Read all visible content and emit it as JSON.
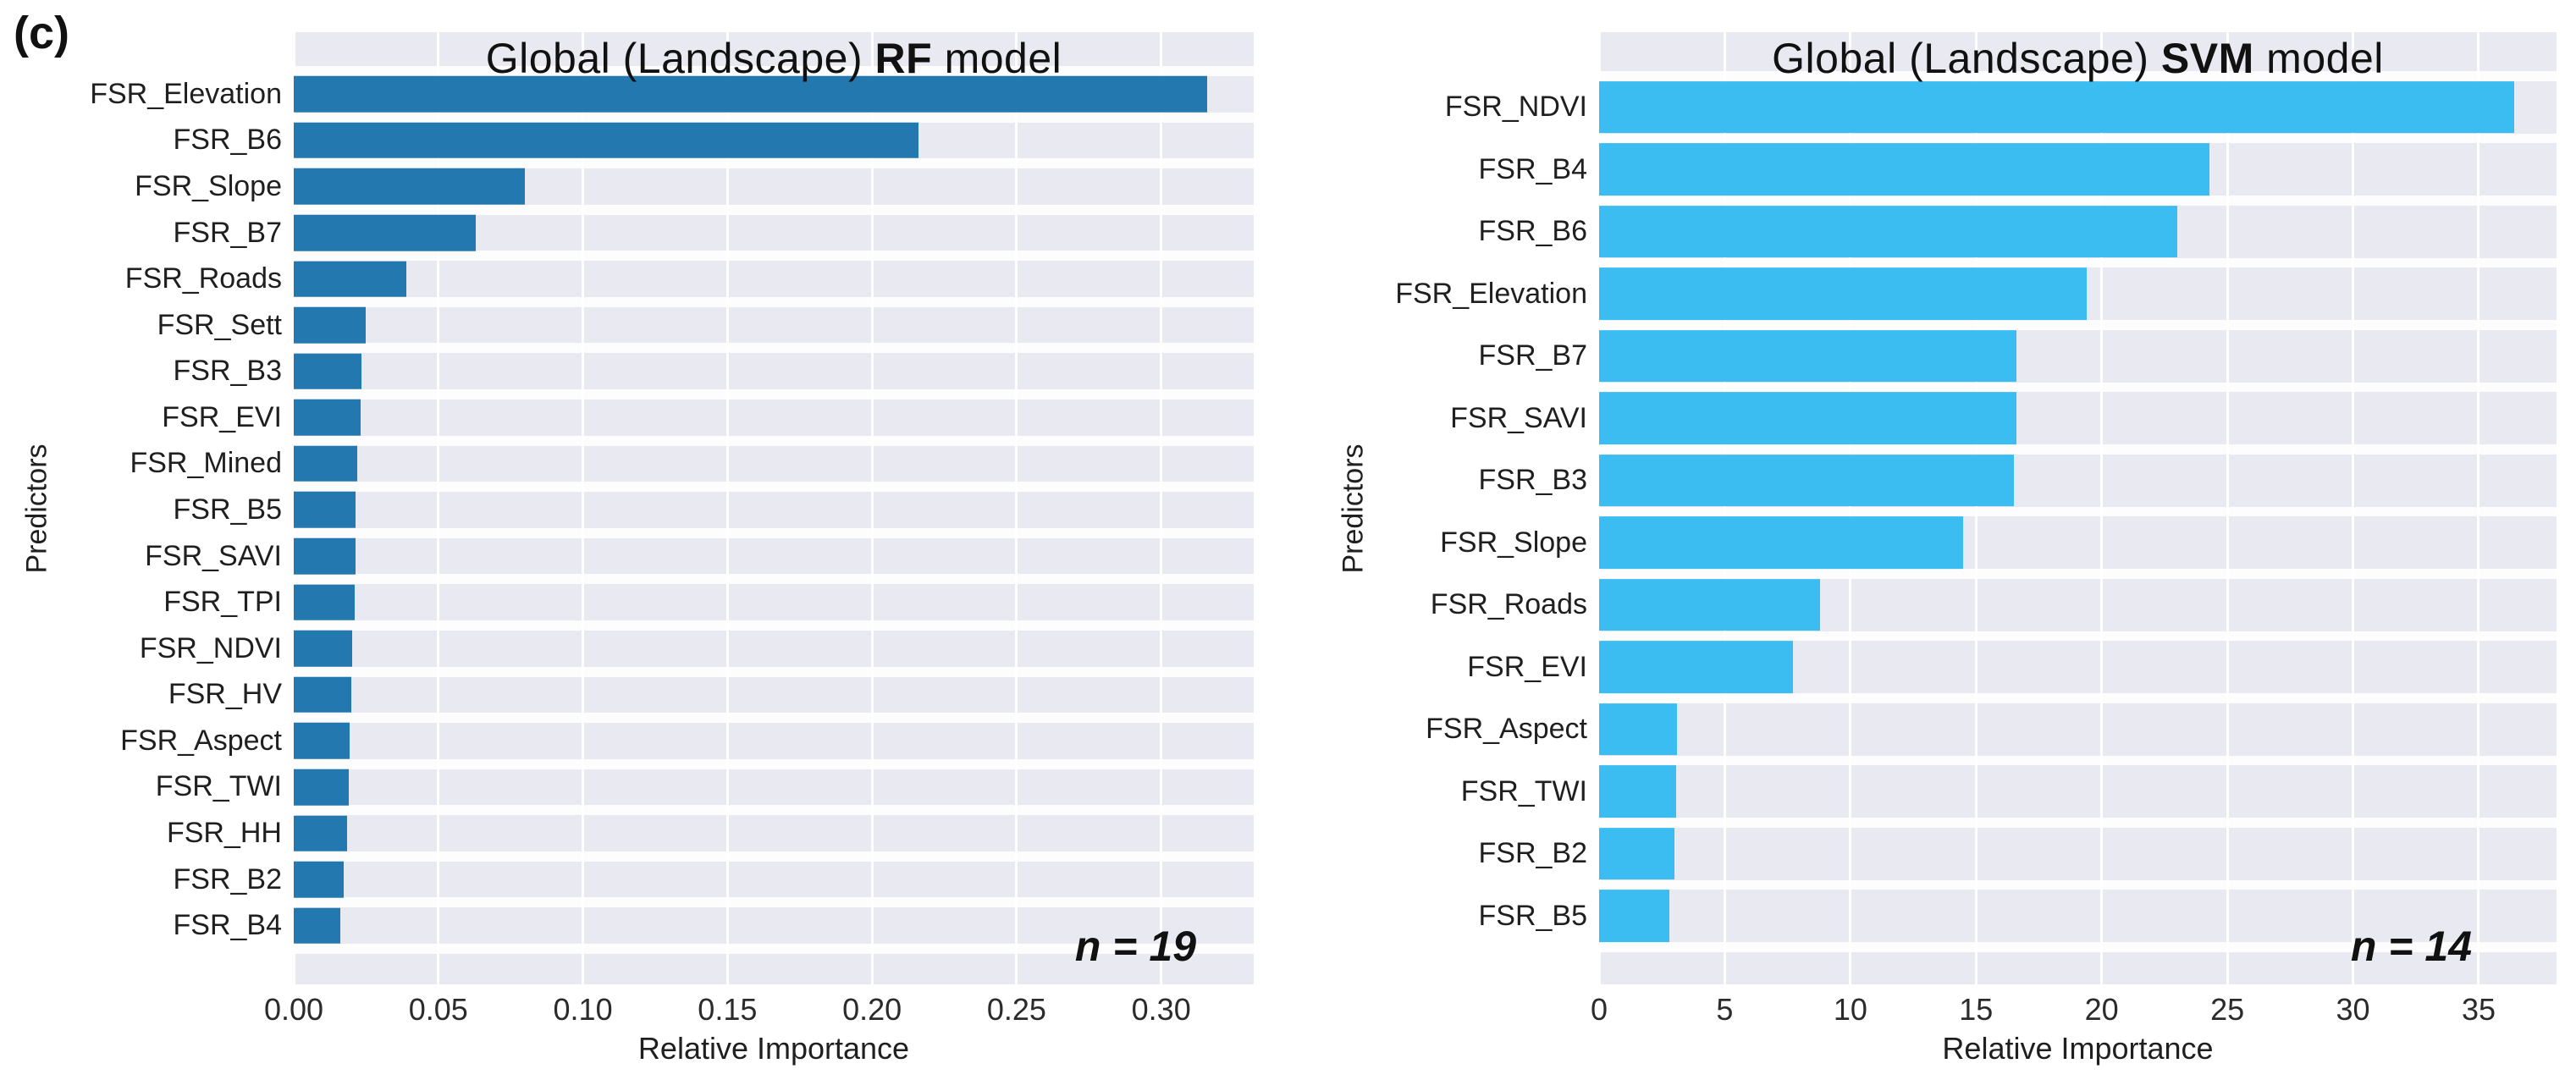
{
  "figure_label": "(c)",
  "colors": {
    "rf_bar": "#2378b0",
    "svm_bar": "#3bbdf2",
    "plot_background": "#e9e9f1",
    "gridline": "#ffffff"
  },
  "panels": [
    {
      "title_prefix": "Global (Landscape) ",
      "title_model": "RF",
      "title_suffix": " model",
      "ylabel": "Predictors",
      "xlabel": "Relative Importance",
      "sample_size_label": "n = 19"
    },
    {
      "title_prefix": "Global (Landscape) ",
      "title_model": "SVM",
      "title_suffix": " model",
      "ylabel": "Predictors",
      "xlabel": "Relative Importance",
      "sample_size_label": "n = 14"
    }
  ],
  "chart_data": [
    {
      "type": "bar",
      "orientation": "horizontal",
      "title": "Global (Landscape) RF model",
      "xlabel": "Relative Importance",
      "ylabel": "Predictors",
      "annotation": "n = 19",
      "n_predictors": 19,
      "bar_color": "#2378b0",
      "grid": true,
      "legend": false,
      "xlim": [
        0,
        0.332
      ],
      "xticks": [
        0.0,
        0.05,
        0.1,
        0.15,
        0.2,
        0.25,
        0.3
      ],
      "xtick_labels": [
        "0.00",
        "0.05",
        "0.10",
        "0.15",
        "0.20",
        "0.25",
        "0.30"
      ],
      "categories": [
        "FSR_Elevation",
        "FSR_B6",
        "FSR_Slope",
        "FSR_B7",
        "FSR_Roads",
        "FSR_Sett",
        "FSR_B3",
        "FSR_EVI",
        "FSR_Mined",
        "FSR_B5",
        "FSR_SAVI",
        "FSR_TPI",
        "FSR_NDVI",
        "FSR_HV",
        "FSR_Aspect",
        "FSR_TWI",
        "FSR_HH",
        "FSR_B2",
        "FSR_B4"
      ],
      "values": [
        0.316,
        0.216,
        0.08,
        0.063,
        0.039,
        0.025,
        0.0235,
        0.023,
        0.022,
        0.0215,
        0.0213,
        0.021,
        0.0203,
        0.02,
        0.0192,
        0.019,
        0.0183,
        0.0172,
        0.016
      ]
    },
    {
      "type": "bar",
      "orientation": "horizontal",
      "title": "Global (Landscape) SVM model",
      "xlabel": "Relative Importance",
      "ylabel": "Predictors",
      "annotation": "n = 14",
      "n_predictors": 14,
      "bar_color": "#3bbdf2",
      "grid": true,
      "legend": false,
      "xlim": [
        0,
        38.1
      ],
      "xticks": [
        0,
        5,
        10,
        15,
        20,
        25,
        30,
        35
      ],
      "xtick_labels": [
        "0",
        "5",
        "10",
        "15",
        "20",
        "25",
        "30",
        "35"
      ],
      "categories": [
        "FSR_NDVI",
        "FSR_B4",
        "FSR_B6",
        "FSR_Elevation",
        "FSR_B7",
        "FSR_SAVI",
        "FSR_B3",
        "FSR_Slope",
        "FSR_Roads",
        "FSR_EVI",
        "FSR_Aspect",
        "FSR_TWI",
        "FSR_B2",
        "FSR_B5"
      ],
      "values": [
        36.4,
        24.3,
        23.0,
        19.4,
        16.6,
        16.6,
        16.5,
        14.5,
        8.8,
        7.7,
        3.1,
        3.05,
        3.0,
        2.8
      ]
    }
  ]
}
